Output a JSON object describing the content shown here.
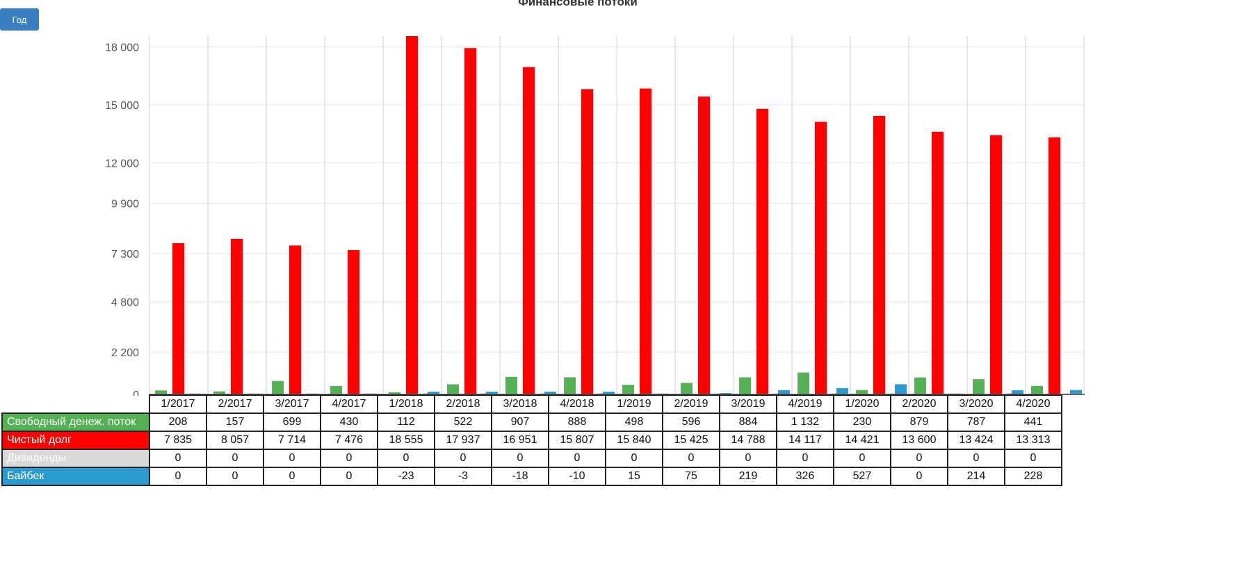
{
  "controls": {
    "year_button_label": "Год"
  },
  "colors": {
    "free_cash_flow": "#55b155",
    "net_debt": "#ff0000",
    "dividends": "#d9d9d9",
    "buyback": "#2a9bd0"
  },
  "chart_data": {
    "type": "bar",
    "title": "Финансовые потоки",
    "categories": [
      "1/2017",
      "2/2017",
      "3/2017",
      "4/2017",
      "1/2018",
      "2/2018",
      "3/2018",
      "4/2018",
      "1/2019",
      "2/2019",
      "3/2019",
      "4/2019",
      "1/2020",
      "2/2020",
      "3/2020",
      "4/2020"
    ],
    "y_ticks": [
      {
        "value": 0,
        "label": "0"
      },
      {
        "value": 2200,
        "label": "2 200"
      },
      {
        "value": 4800,
        "label": "4 800"
      },
      {
        "value": 7300,
        "label": "7 300"
      },
      {
        "value": 9900,
        "label": "9 900"
      },
      {
        "value": 12000,
        "label": "12 000"
      },
      {
        "value": 15000,
        "label": "15 000"
      },
      {
        "value": 18000,
        "label": "18 000"
      }
    ],
    "ylim": [
      0,
      18555
    ],
    "grid": true,
    "legend": "table-below",
    "series": [
      {
        "name": "Свободный денеж. поток",
        "color_key": "free_cash_flow",
        "values": [
          208,
          157,
          699,
          430,
          112,
          522,
          907,
          888,
          498,
          596,
          884,
          1132,
          230,
          879,
          787,
          441
        ],
        "labels": [
          "208",
          "157",
          "699",
          "430",
          "112",
          "522",
          "907",
          "888",
          "498",
          "596",
          "884",
          "1 132",
          "230",
          "879",
          "787",
          "441"
        ]
      },
      {
        "name": "Чистый долг",
        "color_key": "net_debt",
        "values": [
          7835,
          8057,
          7714,
          7476,
          18555,
          17937,
          16951,
          15807,
          15840,
          15425,
          14788,
          14117,
          14421,
          13600,
          13424,
          13313
        ],
        "labels": [
          "7 835",
          "8 057",
          "7 714",
          "7 476",
          "18 555",
          "17 937",
          "16 951",
          "15 807",
          "15 840",
          "15 425",
          "14 788",
          "14 117",
          "14 421",
          "13 600",
          "13 424",
          "13 313"
        ]
      },
      {
        "name": "Дивиденды",
        "color_key": "dividends",
        "values": [
          0,
          0,
          0,
          0,
          0,
          0,
          0,
          0,
          0,
          0,
          0,
          0,
          0,
          0,
          0,
          0
        ],
        "labels": [
          "0",
          "0",
          "0",
          "0",
          "0",
          "0",
          "0",
          "0",
          "0",
          "0",
          "0",
          "0",
          "0",
          "0",
          "0",
          "0"
        ]
      },
      {
        "name": "Байбек",
        "color_key": "buyback",
        "values": [
          0,
          0,
          0,
          0,
          -23,
          -3,
          -18,
          -10,
          15,
          75,
          219,
          326,
          527,
          0,
          214,
          228
        ],
        "labels": [
          "0",
          "0",
          "0",
          "0",
          "-23",
          "-3",
          "-18",
          "-10",
          "15",
          "75",
          "219",
          "326",
          "527",
          "0",
          "214",
          "228"
        ]
      }
    ]
  }
}
